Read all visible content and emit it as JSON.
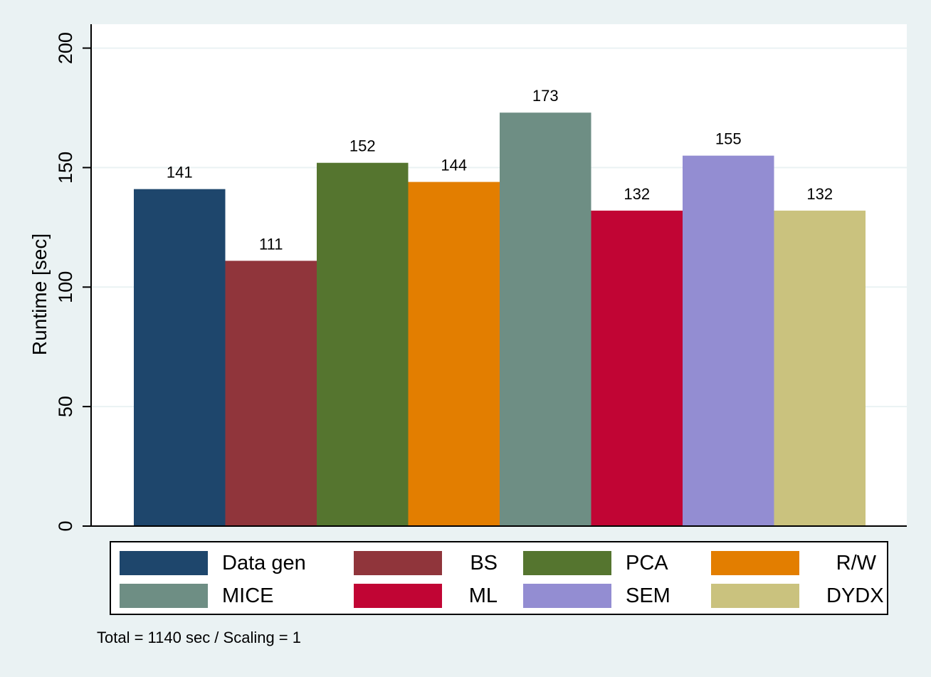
{
  "chart_data": {
    "type": "bar",
    "title": "",
    "xlabel": "",
    "ylabel": "Runtime [sec]",
    "ylim": [
      0,
      210
    ],
    "yticks": [
      0,
      50,
      100,
      150,
      200
    ],
    "grid": true,
    "legend_position": "bottom",
    "categories": [
      "Data gen",
      "BS",
      "PCA",
      "R/W",
      "MICE",
      "ML",
      "SEM",
      "DYDX"
    ],
    "values": [
      141,
      111,
      152,
      144,
      173,
      132,
      155,
      132
    ],
    "data_labels": [
      "141",
      "111",
      "152",
      "144",
      "173",
      "132",
      "155",
      "132"
    ],
    "colors": [
      "#1e466c",
      "#90353b",
      "#55752f",
      "#e37e00",
      "#6e8e84",
      "#c10534",
      "#938dd2",
      "#cac27e"
    ]
  },
  "legend": {
    "items": [
      {
        "label": "Data gen",
        "color": "#1e466c"
      },
      {
        "label": "BS",
        "color": "#90353b"
      },
      {
        "label": "PCA",
        "color": "#55752f"
      },
      {
        "label": "R/W",
        "color": "#e37e00"
      },
      {
        "label": "MICE",
        "color": "#6e8e84"
      },
      {
        "label": "ML",
        "color": "#c10534"
      },
      {
        "label": "SEM",
        "color": "#938dd2"
      },
      {
        "label": "DYDX",
        "color": "#cac27e"
      }
    ]
  },
  "footnote": "Total = 1140 sec / Scaling = 1"
}
